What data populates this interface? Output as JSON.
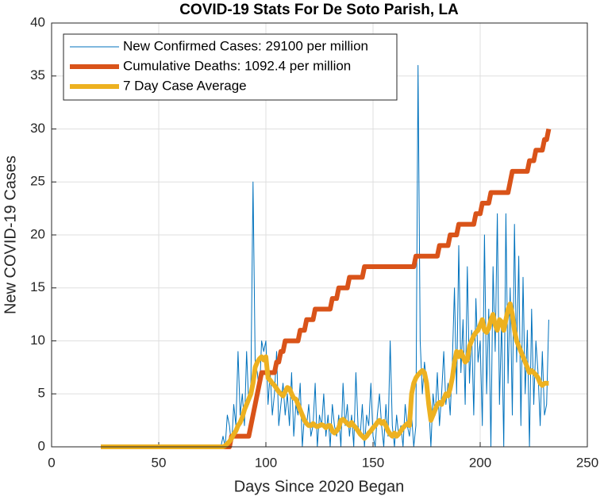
{
  "chart_data": {
    "type": "line",
    "title": "COVID-19 Stats For De Soto Parish, LA",
    "xlabel": "Days Since 2020 Began",
    "ylabel": "New COVID-19 Cases",
    "xlim": [
      0,
      250
    ],
    "xticks": [
      0,
      50,
      100,
      150,
      200,
      250
    ],
    "ylim": [
      0,
      40
    ],
    "yticks": [
      0,
      5,
      10,
      15,
      20,
      25,
      30,
      35,
      40
    ],
    "grid": true,
    "legend": "upper-left",
    "x": [
      23,
      24,
      25,
      26,
      27,
      28,
      29,
      30,
      31,
      32,
      33,
      34,
      35,
      36,
      37,
      38,
      39,
      40,
      41,
      42,
      43,
      44,
      45,
      46,
      47,
      48,
      49,
      50,
      51,
      52,
      53,
      54,
      55,
      56,
      57,
      58,
      59,
      60,
      61,
      62,
      63,
      64,
      65,
      66,
      67,
      68,
      69,
      70,
      71,
      72,
      73,
      74,
      75,
      76,
      77,
      78,
      79,
      80,
      81,
      82,
      83,
      84,
      85,
      86,
      87,
      88,
      89,
      90,
      91,
      92,
      93,
      94,
      95,
      96,
      97,
      98,
      99,
      100,
      101,
      102,
      103,
      104,
      105,
      106,
      107,
      108,
      109,
      110,
      111,
      112,
      113,
      114,
      115,
      116,
      117,
      118,
      119,
      120,
      121,
      122,
      123,
      124,
      125,
      126,
      127,
      128,
      129,
      130,
      131,
      132,
      133,
      134,
      135,
      136,
      137,
      138,
      139,
      140,
      141,
      142,
      143,
      144,
      145,
      146,
      147,
      148,
      149,
      150,
      151,
      152,
      153,
      154,
      155,
      156,
      157,
      158,
      159,
      160,
      161,
      162,
      163,
      164,
      165,
      166,
      167,
      168,
      169,
      170,
      171,
      172,
      173,
      174,
      175,
      176,
      177,
      178,
      179,
      180,
      181,
      182,
      183,
      184,
      185,
      186,
      187,
      188,
      189,
      190,
      191,
      192,
      193,
      194,
      195,
      196,
      197,
      198,
      199,
      200,
      201,
      202,
      203,
      204,
      205,
      206,
      207,
      208,
      209,
      210,
      211,
      212,
      213,
      214,
      215,
      216,
      217,
      218,
      219,
      220,
      221,
      222,
      223,
      224,
      225,
      226,
      227,
      228,
      229,
      230,
      231,
      232
    ],
    "series": [
      {
        "name": "New Confirmed Cases: 29100 per million",
        "color": "#0072bd",
        "width": 1,
        "values": [
          0,
          0,
          0,
          0,
          0,
          0,
          0,
          0,
          0,
          0,
          0,
          0,
          0,
          0,
          0,
          0,
          0,
          0,
          0,
          0,
          0,
          0,
          0,
          0,
          0,
          0,
          0,
          0,
          0,
          0,
          0,
          0,
          0,
          0,
          0,
          0,
          0,
          0,
          0,
          0,
          0,
          0,
          0,
          0,
          0,
          0,
          0,
          0,
          0,
          0,
          0,
          0,
          0,
          0,
          0,
          0,
          0,
          1,
          0,
          3,
          2,
          0,
          4,
          2,
          9,
          3,
          5,
          2,
          9,
          4,
          6,
          25,
          8,
          7,
          5,
          10,
          9,
          10,
          4,
          7,
          3,
          5,
          9,
          2,
          4,
          6,
          3,
          5,
          2,
          7,
          1,
          4,
          3,
          6,
          0,
          3,
          2,
          4,
          1,
          2,
          6,
          0,
          3,
          2,
          5,
          1,
          3,
          0,
          4,
          2,
          1,
          3,
          0,
          6,
          2,
          4,
          1,
          3,
          0,
          7,
          2,
          1,
          4,
          0,
          3,
          2,
          6,
          1,
          0,
          3,
          5,
          2,
          0,
          4,
          1,
          10,
          2,
          0,
          3,
          1,
          2,
          0,
          4,
          2,
          1,
          3,
          0,
          2,
          36,
          10,
          5,
          8,
          6,
          4,
          0,
          5,
          3,
          7,
          2,
          5,
          9,
          4,
          6,
          3,
          8,
          15,
          5,
          19,
          7,
          12,
          4,
          17,
          6,
          11,
          3,
          14,
          8,
          10,
          2,
          20,
          5,
          13,
          0,
          17,
          9,
          22,
          4,
          12,
          0,
          22,
          6,
          15,
          3,
          21,
          8,
          18,
          2,
          16,
          5,
          11,
          0,
          13,
          4,
          10,
          7,
          2,
          9,
          3,
          4,
          12
        ]
      },
      {
        "name": "Cumulative Deaths: 1092.4 per million",
        "color": "#d95319",
        "width": 6,
        "values": [
          0,
          0,
          0,
          0,
          0,
          0,
          0,
          0,
          0,
          0,
          0,
          0,
          0,
          0,
          0,
          0,
          0,
          0,
          0,
          0,
          0,
          0,
          0,
          0,
          0,
          0,
          0,
          0,
          0,
          0,
          0,
          0,
          0,
          0,
          0,
          0,
          0,
          0,
          0,
          0,
          0,
          0,
          0,
          0,
          0,
          0,
          0,
          0,
          0,
          0,
          0,
          0,
          0,
          0,
          0,
          0,
          0,
          0,
          0,
          0,
          0,
          1,
          1,
          1,
          1,
          1,
          1,
          1,
          1,
          1,
          2,
          3,
          4,
          5,
          6,
          7,
          7,
          7,
          7,
          7,
          7,
          7,
          8,
          8,
          9,
          9,
          10,
          10,
          10,
          10,
          10,
          10,
          10,
          11,
          11,
          11,
          12,
          12,
          12,
          12,
          13,
          13,
          13,
          13,
          13,
          13,
          13,
          13,
          14,
          14,
          14,
          15,
          15,
          15,
          15,
          15,
          16,
          16,
          16,
          16,
          16,
          16,
          16,
          17,
          17,
          17,
          17,
          17,
          17,
          17,
          17,
          17,
          17,
          17,
          17,
          17,
          17,
          17,
          17,
          17,
          17,
          17,
          17,
          17,
          17,
          17,
          17,
          18,
          18,
          18,
          18,
          18,
          18,
          18,
          18,
          18,
          18,
          18,
          19,
          19,
          19,
          19,
          19,
          20,
          20,
          20,
          20,
          21,
          21,
          21,
          21,
          21,
          21,
          21,
          21,
          22,
          22,
          22,
          23,
          23,
          23,
          23,
          24,
          24,
          24,
          24,
          24,
          24,
          24,
          24,
          24,
          25,
          26,
          26,
          26,
          26,
          26,
          26,
          26,
          26,
          27,
          27,
          27,
          28,
          28,
          28,
          28,
          29,
          29,
          30
        ]
      },
      {
        "name": "7 Day Case Average",
        "color": "#edb120",
        "width": 6,
        "values": [
          0,
          0,
          0,
          0,
          0,
          0,
          0,
          0,
          0,
          0,
          0,
          0,
          0,
          0,
          0,
          0,
          0,
          0,
          0,
          0,
          0,
          0,
          0,
          0,
          0,
          0,
          0,
          0,
          0,
          0,
          0,
          0,
          0,
          0,
          0,
          0,
          0,
          0,
          0,
          0,
          0,
          0,
          0,
          0,
          0,
          0,
          0,
          0,
          0,
          0,
          0,
          0,
          0,
          0,
          0,
          0,
          0,
          0,
          0.1,
          0.3,
          0.5,
          0.8,
          1.2,
          1.5,
          2,
          2.3,
          2.8,
          3.5,
          4,
          4.5,
          5,
          6,
          7.5,
          8,
          8.3,
          8.5,
          8.2,
          8.5,
          6.5,
          6.3,
          6,
          5.8,
          5.5,
          5.2,
          5,
          4.8,
          5.2,
          5.6,
          5.5,
          5,
          4.6,
          4.5,
          4,
          3.5,
          3,
          2.5,
          2.2,
          2,
          2,
          2.2,
          2,
          1.9,
          2,
          2.1,
          2,
          1.8,
          2,
          2,
          1.5,
          1.3,
          1.5,
          1.8,
          2.5,
          2.6,
          2.4,
          2.2,
          2,
          2.3,
          2,
          1.8,
          1.5,
          1.2,
          1,
          0.8,
          1,
          1.3,
          1.5,
          1.8,
          2,
          2.3,
          2.5,
          2.2,
          2.4,
          2,
          1.5,
          1.2,
          1,
          1.3,
          1,
          1.2,
          1.5,
          1.8,
          2,
          2.2,
          2,
          5,
          6,
          6.5,
          6.8,
          7,
          7.2,
          7,
          6,
          4,
          2.5,
          3,
          3.5,
          4,
          4.2,
          4,
          4.5,
          5,
          4.8,
          5.5,
          6.5,
          8,
          9,
          8.5,
          9,
          8.5,
          8,
          8.2,
          9.5,
          10,
          10.5,
          10.8,
          11,
          11.5,
          12,
          11,
          10.8,
          11.2,
          12,
          12.5,
          11.5,
          11,
          12,
          11.8,
          11,
          12,
          13,
          13.5,
          12.5,
          11,
          10,
          9.5,
          9,
          8.5,
          8,
          7.5,
          7,
          7.2,
          7,
          6.8,
          6.5,
          6,
          5.8,
          6,
          6,
          6
        ]
      }
    ]
  }
}
